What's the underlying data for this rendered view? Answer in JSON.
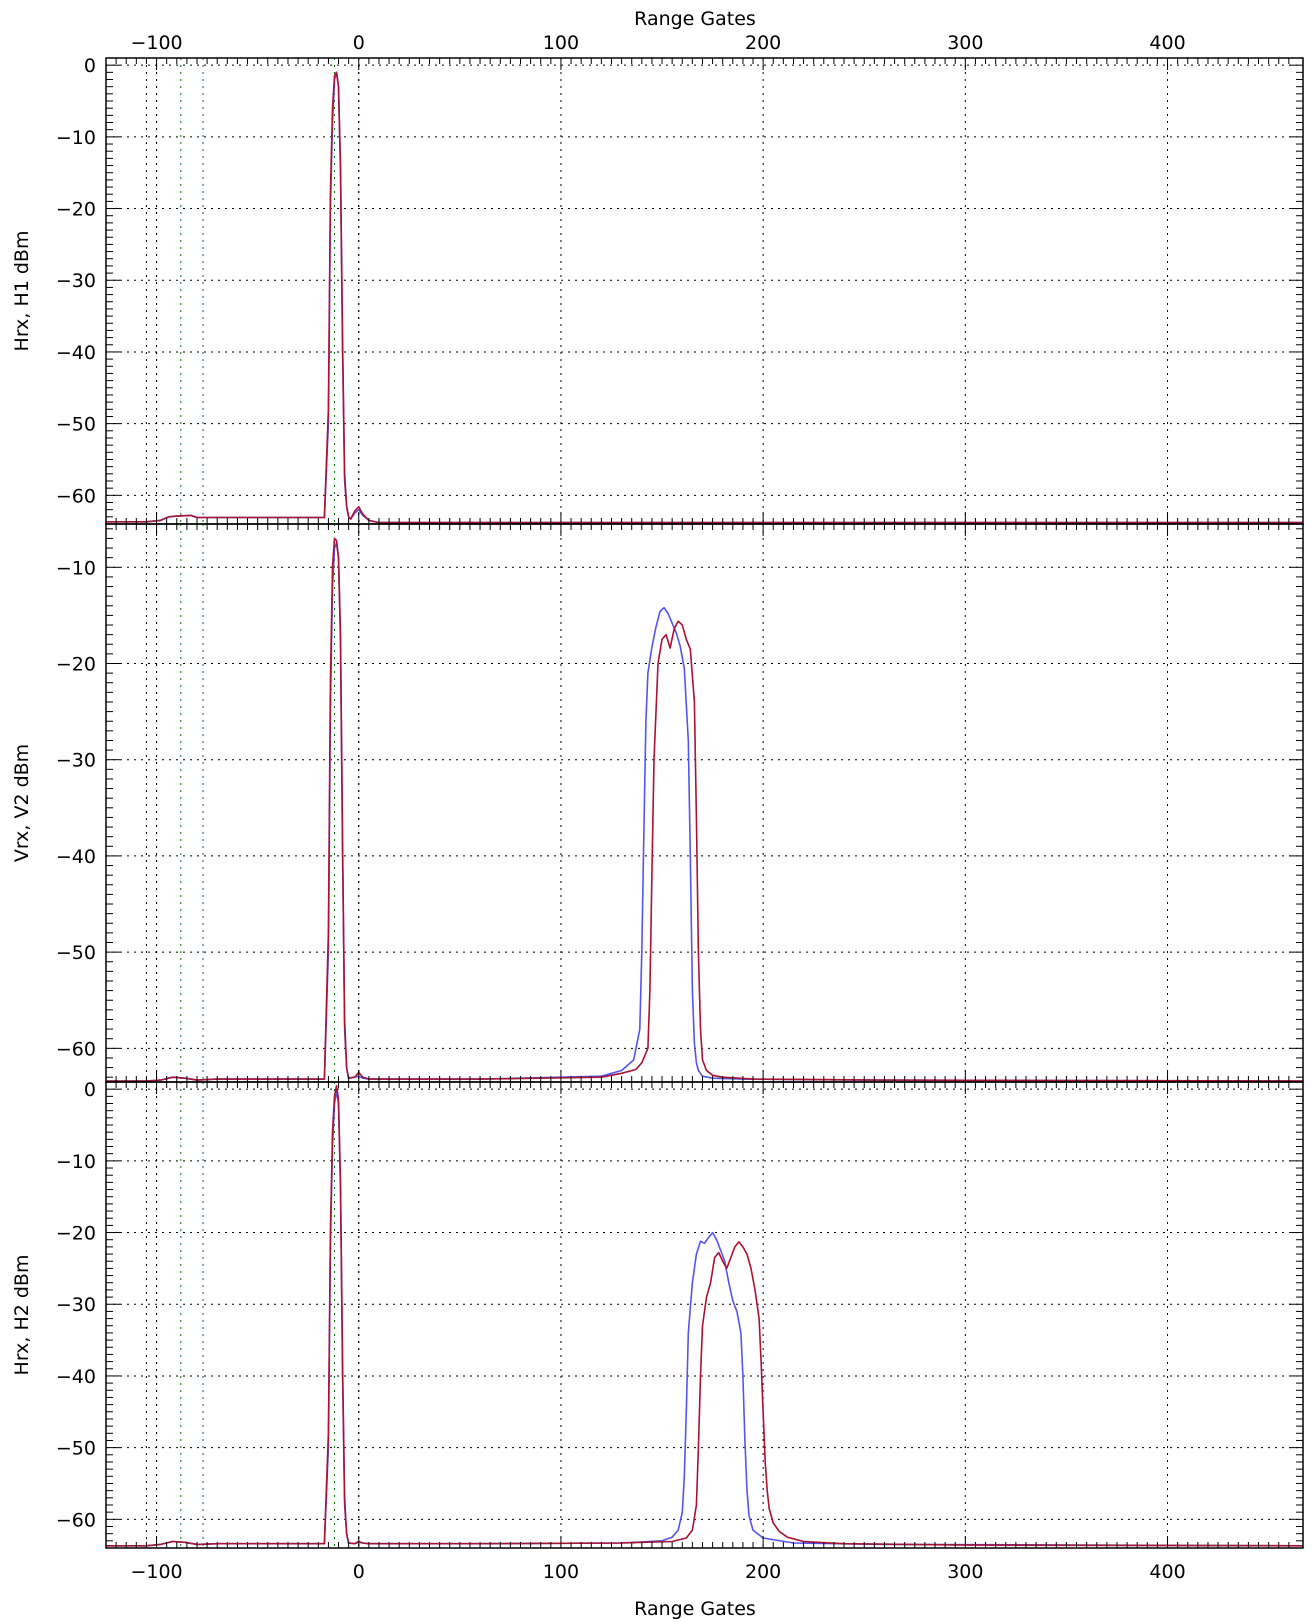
{
  "chart_data": {
    "type": "line",
    "xlabel_top": "Range Gates",
    "xlabel_bottom": "Range Gates",
    "xlim": [
      -125,
      467
    ],
    "x_ticks": [
      -100,
      0,
      100,
      200,
      300,
      400
    ],
    "x_tick_labels": [
      "−100",
      "0",
      "100",
      "200",
      "300",
      "400"
    ],
    "colors": {
      "blue": "#5555ee",
      "red": "#aa1133",
      "green": "#007700",
      "grid": "#000000"
    },
    "marker_lines": [
      {
        "x": -105,
        "color": "#000000"
      },
      {
        "x": -100,
        "color": "#000000"
      },
      {
        "x": -88,
        "color": "#007700"
      },
      {
        "x": -77,
        "color": "#007700"
      },
      {
        "x": -12,
        "color": "#007700"
      },
      {
        "x": 0,
        "color": "#000000"
      }
    ],
    "panels": [
      {
        "ylabel": "Hrx, H1 dBm",
        "ylim": [
          -64,
          1
        ],
        "y_ticks": [
          0,
          -10,
          -20,
          -30,
          -40,
          -50,
          -60
        ],
        "y_tick_labels": [
          "0",
          "−10",
          "−20",
          "−30",
          "−40",
          "−50",
          "−60"
        ],
        "series": [
          {
            "color": "blue",
            "x": [
              -125,
              -105,
              -98,
              -94,
              -90,
              -83,
              -80,
              -78,
              -70,
              -50,
              -30,
              -17,
              -15,
              -14,
              -13,
              -12,
              -11,
              -10,
              -9,
              -8,
              -7,
              -6,
              -5,
              -4,
              -2,
              0,
              2,
              5,
              10,
              30,
              467
            ],
            "y": [
              -63.7,
              -63.7,
              -63.5,
              -63.0,
              -62.9,
              -62.8,
              -63.1,
              -63.1,
              -63.1,
              -63.1,
              -63.1,
              -63.1,
              -50,
              -20,
              -8,
              -2,
              -1,
              -3,
              -15,
              -40,
              -58,
              -61.5,
              -63,
              -63.3,
              -62.5,
              -62.0,
              -62.8,
              -63.5,
              -63.8,
              -63.8,
              -63.8
            ]
          },
          {
            "color": "red",
            "x": [
              -125,
              -105,
              -98,
              -94,
              -90,
              -83,
              -80,
              -78,
              -70,
              -50,
              -30,
              -17,
              -15,
              -14,
              -13,
              -12,
              -11,
              -10,
              -9,
              -8,
              -7,
              -6,
              -5,
              -4,
              -2,
              0,
              2,
              5,
              10,
              30,
              467
            ],
            "y": [
              -63.7,
              -63.7,
              -63.5,
              -63.0,
              -62.9,
              -62.8,
              -63.1,
              -63.1,
              -63.1,
              -63.1,
              -63.1,
              -63.1,
              -48,
              -18,
              -6,
              -1.5,
              -1,
              -3,
              -14,
              -39,
              -57,
              -61.5,
              -63,
              -63.3,
              -62.2,
              -61.6,
              -62.6,
              -63.5,
              -63.8,
              -63.8,
              -63.8
            ]
          }
        ]
      },
      {
        "ylabel": "Vrx, V2 dBm",
        "ylim": [
          -63.5,
          -5.5
        ],
        "y_ticks": [
          -10,
          -20,
          -30,
          -40,
          -50,
          -60
        ],
        "y_tick_labels": [
          "−10",
          "−20",
          "−30",
          "−40",
          "−50",
          "−60"
        ],
        "series": [
          {
            "color": "blue",
            "x": [
              -125,
              -105,
              -98,
              -92,
              -86,
              -80,
              -70,
              -30,
              -17,
              -15,
              -14,
              -13,
              -12,
              -11,
              -10,
              -9,
              -8,
              -7,
              -6,
              -5,
              -2,
              0,
              2,
              5,
              60,
              120,
              130,
              136,
              139,
              140,
              141,
              142,
              143,
              145,
              147,
              149,
              151,
              153,
              155,
              157,
              159,
              161,
              163,
              164,
              165,
              166,
              167,
              168,
              170,
              175,
              190,
              250,
              467
            ],
            "y": [
              -63.4,
              -63.4,
              -63.3,
              -63.0,
              -63.1,
              -63.3,
              -63.2,
              -63.2,
              -63.2,
              -50,
              -25,
              -12,
              -8,
              -7.5,
              -9,
              -18,
              -40,
              -58,
              -62,
              -63.1,
              -63.0,
              -62.9,
              -63.1,
              -63.2,
              -63.2,
              -62.9,
              -62.3,
              -61.2,
              -58,
              -50,
              -38,
              -26,
              -21,
              -18.3,
              -16.2,
              -14.6,
              -14.2,
              -14.8,
              -15.8,
              -16.8,
              -18.2,
              -20.5,
              -28,
              -40,
              -54,
              -59.5,
              -61.5,
              -62.3,
              -62.9,
              -63.1,
              -63.2,
              -63.3,
              -63.4
            ]
          },
          {
            "color": "red",
            "x": [
              -125,
              -105,
              -98,
              -92,
              -86,
              -80,
              -70,
              -30,
              -17,
              -15,
              -14,
              -13,
              -12,
              -11,
              -10,
              -9,
              -8,
              -7,
              -6,
              -5,
              -2,
              0,
              2,
              5,
              60,
              120,
              130,
              137,
              140,
              143,
              144,
              145,
              146,
              148,
              150,
              152,
              154,
              156,
              158,
              160,
              162,
              164,
              166,
              167,
              168,
              169,
              170,
              172,
              175,
              180,
              195,
              260,
              467
            ],
            "y": [
              -63.4,
              -63.4,
              -63.3,
              -63.0,
              -63.1,
              -63.3,
              -63.2,
              -63.2,
              -63.2,
              -48,
              -22,
              -10,
              -7,
              -7.2,
              -9,
              -17,
              -39,
              -57,
              -62,
              -63.1,
              -63.0,
              -62.5,
              -63.0,
              -63.2,
              -63.2,
              -63.0,
              -62.6,
              -62.2,
              -61.5,
              -60,
              -54,
              -42,
              -30,
              -20,
              -17.5,
              -17.0,
              -18.4,
              -16.4,
              -15.6,
              -16.0,
              -17.5,
              -18.5,
              -24,
              -36,
              -50,
              -58,
              -61.2,
              -62.3,
              -62.8,
              -63.0,
              -63.2,
              -63.3,
              -63.4
            ]
          }
        ]
      },
      {
        "ylabel": "Hrx, H2 dBm",
        "ylim": [
          -64,
          1
        ],
        "y_ticks": [
          0,
          -10,
          -20,
          -30,
          -40,
          -50,
          -60
        ],
        "y_tick_labels": [
          "0",
          "−10",
          "−20",
          "−30",
          "−40",
          "−50",
          "−60"
        ],
        "series": [
          {
            "color": "blue",
            "x": [
              -125,
              -105,
              -98,
              -92,
              -86,
              -80,
              -70,
              -30,
              -17,
              -15,
              -14,
              -13,
              -12,
              -11,
              -10,
              -9,
              -8,
              -7,
              -6,
              -5,
              -2,
              0,
              2,
              5,
              60,
              130,
              150,
              155,
              158,
              160,
              161,
              162,
              163,
              165,
              167,
              169,
              171,
              173,
              175,
              177,
              179,
              181,
              183,
              185,
              187,
              189,
              190,
              191,
              192,
              193,
              195,
              200,
              215,
              260,
              467
            ],
            "y": [
              -63.7,
              -63.7,
              -63.5,
              -63.1,
              -63.2,
              -63.5,
              -63.4,
              -63.4,
              -63.4,
              -50,
              -22,
              -8,
              -2,
              -0.3,
              -2,
              -14,
              -40,
              -58,
              -62,
              -63.3,
              -63.4,
              -63.2,
              -63.3,
              -63.4,
              -63.4,
              -63.3,
              -63.0,
              -62.5,
              -61.5,
              -59,
              -54,
              -45,
              -34,
              -27,
              -23,
              -21.2,
              -21.5,
              -20.7,
              -20.0,
              -21.0,
              -22.5,
              -24,
              -27,
              -29.5,
              -31,
              -34,
              -40,
              -49,
              -56,
              -59.5,
              -61.5,
              -62.6,
              -63.3,
              -63.5,
              -63.7
            ]
          },
          {
            "color": "red",
            "x": [
              -125,
              -105,
              -98,
              -92,
              -86,
              -80,
              -70,
              -30,
              -17,
              -15,
              -14,
              -13,
              -12,
              -11,
              -10,
              -9,
              -8,
              -7,
              -6,
              -5,
              -2,
              0,
              2,
              5,
              60,
              130,
              155,
              162,
              165,
              167,
              168,
              169,
              170,
              172,
              174,
              176,
              178,
              180,
              182,
              184,
              186,
              188,
              190,
              192,
              194,
              196,
              198,
              199,
              200,
              201,
              202,
              203,
              205,
              208,
              212,
              220,
              240,
              300,
              467
            ],
            "y": [
              -63.7,
              -63.7,
              -63.5,
              -63.1,
              -63.2,
              -63.5,
              -63.4,
              -63.4,
              -63.4,
              -48,
              -20,
              -6,
              -1,
              0.5,
              -1.5,
              -13,
              -39,
              -57,
              -62,
              -63.3,
              -63.4,
              -63.1,
              -63.3,
              -63.4,
              -63.4,
              -63.3,
              -63.1,
              -62.6,
              -61.5,
              -58,
              -50,
              -40,
              -33,
              -29,
              -27,
              -23.5,
              -22.8,
              -24.0,
              -25.0,
              -23.5,
              -22.0,
              -21.3,
              -22.0,
              -23.0,
              -25.0,
              -28.0,
              -32,
              -38,
              -45,
              -52,
              -56,
              -58.5,
              -60.5,
              -61.7,
              -62.5,
              -63.1,
              -63.4,
              -63.6,
              -63.7
            ]
          }
        ]
      }
    ]
  }
}
